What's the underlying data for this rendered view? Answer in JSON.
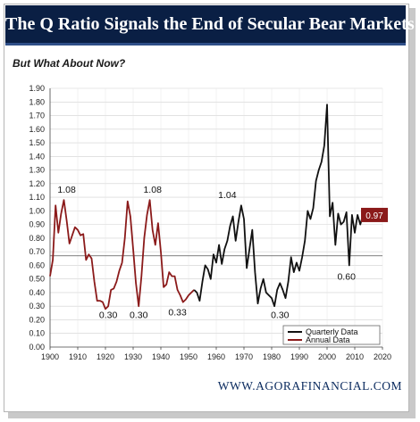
{
  "header": {
    "title": "The Q Ratio Signals the End of Secular Bear Markets"
  },
  "subtitle": "But What About Now?",
  "footer": {
    "website": "WWW.AGORAFINANCIAL.COM"
  },
  "colors": {
    "banner": "#0a1f44",
    "quarterly": "#111111",
    "annual": "#8b1a1a",
    "callout": "#8b1a1a",
    "reference_line": "#555555"
  },
  "chart_data": {
    "type": "line",
    "title": "",
    "xlabel": "",
    "ylabel": "",
    "xlim": [
      1900,
      2020
    ],
    "ylim": [
      0,
      1.9
    ],
    "x_ticks": [
      "1900",
      "1910",
      "1920",
      "1930",
      "1940",
      "1950",
      "1960",
      "1970",
      "1980",
      "1990",
      "2000",
      "2010",
      "2020"
    ],
    "y_ticks": [
      "0.00",
      "0.10",
      "0.20",
      "0.30",
      "0.40",
      "0.50",
      "0.60",
      "0.70",
      "0.80",
      "0.90",
      "1.00",
      "1.10",
      "1.20",
      "1.30",
      "1.40",
      "1.50",
      "1.60",
      "1.70",
      "1.80",
      "1.90"
    ],
    "grid": true,
    "legend_position": "bottom-right",
    "reference_line": {
      "y": 0.67
    },
    "series": [
      {
        "name": "Annual Data",
        "x": [
          1900,
          1901,
          1902,
          1903,
          1904,
          1905,
          1906,
          1907,
          1908,
          1909,
          1910,
          1911,
          1912,
          1913,
          1914,
          1915,
          1916,
          1917,
          1918,
          1919,
          1920,
          1921,
          1922,
          1923,
          1924,
          1925,
          1926,
          1927,
          1928,
          1929,
          1930,
          1931,
          1932,
          1933,
          1934,
          1935,
          1936,
          1937,
          1938,
          1939,
          1940,
          1941,
          1942,
          1943,
          1944,
          1945,
          1946,
          1947,
          1948,
          1949,
          1950,
          1951,
          1952
        ],
        "y": [
          0.52,
          0.64,
          1.04,
          0.84,
          0.98,
          1.08,
          0.93,
          0.76,
          0.82,
          0.88,
          0.86,
          0.82,
          0.83,
          0.64,
          0.68,
          0.65,
          0.48,
          0.34,
          0.34,
          0.33,
          0.28,
          0.3,
          0.42,
          0.43,
          0.48,
          0.56,
          0.62,
          0.8,
          1.07,
          0.96,
          0.72,
          0.47,
          0.3,
          0.52,
          0.8,
          0.97,
          1.08,
          0.86,
          0.75,
          0.91,
          0.7,
          0.44,
          0.46,
          0.55,
          0.52,
          0.52,
          0.42,
          0.38,
          0.33,
          0.35,
          0.38,
          0.4,
          0.42
        ]
      },
      {
        "name": "Quarterly Data",
        "x": [
          1952,
          1953,
          1954,
          1955,
          1956,
          1957,
          1958,
          1959,
          1960,
          1961,
          1962,
          1963,
          1964,
          1965,
          1966,
          1967,
          1968,
          1969,
          1970,
          1971,
          1972,
          1973,
          1974,
          1975,
          1976,
          1977,
          1978,
          1979,
          1980,
          1981,
          1982,
          1983,
          1984,
          1985,
          1986,
          1987,
          1988,
          1989,
          1990,
          1991,
          1992,
          1993,
          1994,
          1995,
          1996,
          1997,
          1998,
          1999,
          2000,
          2001,
          2002,
          2003,
          2004,
          2005,
          2006,
          2007,
          2008,
          2009,
          2010,
          2011,
          2012,
          2013
        ],
        "y": [
          0.42,
          0.4,
          0.34,
          0.48,
          0.6,
          0.57,
          0.5,
          0.68,
          0.62,
          0.75,
          0.61,
          0.72,
          0.78,
          0.89,
          0.96,
          0.78,
          0.92,
          1.04,
          0.94,
          0.58,
          0.72,
          0.86,
          0.55,
          0.32,
          0.43,
          0.5,
          0.4,
          0.38,
          0.36,
          0.3,
          0.42,
          0.47,
          0.42,
          0.36,
          0.48,
          0.66,
          0.55,
          0.62,
          0.56,
          0.66,
          0.78,
          1.0,
          0.94,
          1.02,
          1.22,
          1.3,
          1.36,
          1.48,
          1.78,
          0.96,
          1.06,
          0.75,
          0.98,
          0.9,
          0.92,
          0.99,
          0.6,
          0.97,
          0.84,
          0.97,
          0.9,
          0.97
        ]
      }
    ],
    "annotations": [
      {
        "text": "1.08",
        "x": 1906,
        "y": 1.16
      },
      {
        "text": "0.30",
        "x": 1921,
        "y": 0.24
      },
      {
        "text": "0.30",
        "x": 1932,
        "y": 0.24
      },
      {
        "text": "1.08",
        "x": 1937,
        "y": 1.16
      },
      {
        "text": "0.33",
        "x": 1946,
        "y": 0.26
      },
      {
        "text": "1.04",
        "x": 1964,
        "y": 1.12
      },
      {
        "text": "0.30",
        "x": 1983,
        "y": 0.24
      },
      {
        "text": "0.60",
        "x": 2007,
        "y": 0.52
      }
    ],
    "callout": {
      "text": "0.97",
      "y": 0.97
    }
  }
}
